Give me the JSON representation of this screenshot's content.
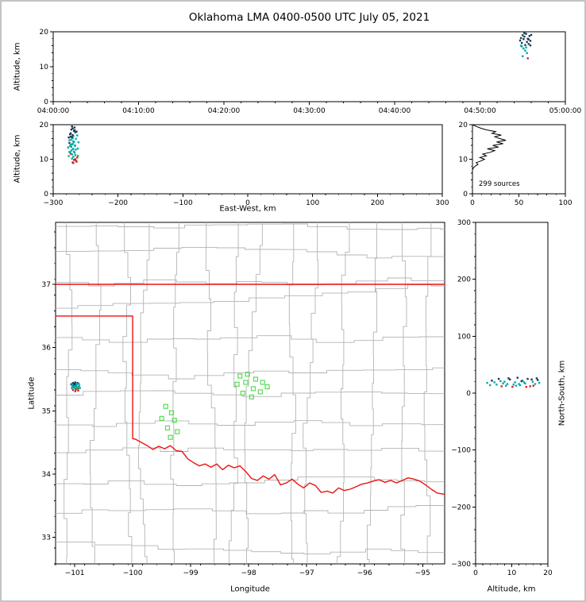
{
  "title": "Oklahoma LMA 0400-0500 UTC July 05, 2021",
  "colors": {
    "source_palette": [
      "#00a8a8",
      "#1c3a52",
      "#cc2525",
      "#2fae3c",
      "#6a3fb5"
    ],
    "station": "#55dd55",
    "state_border": "#ee1111",
    "county": "#b4b4b4",
    "histogram_line": "#000000",
    "frame": "#000000"
  },
  "chart_data": [
    {
      "id": "time_height",
      "type": "scatter",
      "xlabel": "",
      "ylabel": "Altitude, km",
      "xlim": [
        0,
        60
      ],
      "ylim": [
        0,
        20
      ],
      "xtick_values": [
        0,
        10,
        20,
        30,
        40,
        50,
        60
      ],
      "xtick_labels": [
        "04:00:00",
        "04:10:00",
        "04:20:00",
        "04:30:00",
        "04:40:00",
        "04:50:00",
        "05:00:00"
      ],
      "ytick_values": [
        0,
        10,
        20
      ],
      "points": [
        [
          54.7,
          17.5,
          1
        ],
        [
          54.8,
          18.2,
          1
        ],
        [
          54.9,
          16.8,
          1
        ],
        [
          55.0,
          19.0,
          1
        ],
        [
          55.1,
          17.9,
          1
        ],
        [
          55.2,
          18.6,
          1
        ],
        [
          55.3,
          16.2,
          1
        ],
        [
          55.4,
          19.4,
          1
        ],
        [
          55.5,
          17.1,
          1
        ],
        [
          55.6,
          18.0,
          1
        ],
        [
          55.7,
          16.5,
          1
        ],
        [
          55.8,
          18.8,
          1
        ],
        [
          55.9,
          17.4,
          1
        ],
        [
          56.0,
          19.1,
          1
        ],
        [
          54.9,
          15.8,
          0
        ],
        [
          55.1,
          15.2,
          0
        ],
        [
          55.3,
          14.6,
          0
        ],
        [
          55.5,
          13.9,
          0
        ],
        [
          55.0,
          13.0,
          0
        ],
        [
          55.6,
          12.4,
          2
        ],
        [
          55.2,
          19.6,
          1
        ],
        [
          54.8,
          16.0,
          0
        ],
        [
          55.7,
          17.8,
          1
        ],
        [
          55.4,
          15.5,
          0
        ],
        [
          55.9,
          16.1,
          1
        ]
      ]
    },
    {
      "id": "ew_height",
      "type": "scatter",
      "xlabel": "East-West, km",
      "ylabel": "Altitude, km",
      "xlim": [
        -300,
        300
      ],
      "ylim": [
        0,
        20
      ],
      "xtick_values": [
        -300,
        -200,
        -100,
        0,
        100,
        200,
        300
      ],
      "ytick_values": [
        0,
        10,
        20
      ],
      "points": [
        [
          -275,
          12.1,
          0
        ],
        [
          -271,
          14.3,
          0
        ],
        [
          -268,
          9.8,
          2
        ],
        [
          -273,
          16.5,
          1
        ],
        [
          -266,
          11.2,
          0
        ],
        [
          -270,
          18.9,
          1
        ],
        [
          -277,
          13.4,
          0
        ],
        [
          -263,
          10.5,
          2
        ],
        [
          -272,
          15.7,
          0
        ],
        [
          -269,
          8.9,
          2
        ],
        [
          -274,
          17.2,
          1
        ],
        [
          -265,
          12.8,
          0
        ],
        [
          -271,
          19.5,
          1
        ],
        [
          -267,
          14.0,
          0
        ],
        [
          -276,
          10.9,
          3
        ],
        [
          -262,
          13.1,
          0
        ],
        [
          -270,
          16.1,
          0
        ],
        [
          -273,
          11.6,
          2
        ],
        [
          -268,
          18.2,
          1
        ],
        [
          -264,
          9.3,
          2
        ],
        [
          -272,
          12.5,
          0
        ],
        [
          -269,
          15.2,
          0
        ],
        [
          -275,
          14.7,
          1
        ],
        [
          -266,
          17.8,
          1
        ],
        [
          -271,
          10.2,
          0
        ],
        [
          -263,
          16.9,
          0
        ],
        [
          -274,
          13.8,
          3
        ],
        [
          -267,
          11.9,
          0
        ],
        [
          -270,
          9.1,
          2
        ],
        [
          -272,
          18.6,
          1
        ],
        [
          -265,
          15.9,
          0
        ],
        [
          -269,
          13.0,
          0
        ],
        [
          -276,
          16.3,
          1
        ],
        [
          -268,
          12.2,
          0
        ],
        [
          -261,
          14.9,
          0
        ],
        [
          -273,
          17.5,
          1
        ],
        [
          -266,
          10.0,
          2
        ],
        [
          -270,
          14.5,
          0
        ],
        [
          -264,
          18.0,
          1
        ],
        [
          -271,
          11.4,
          0
        ],
        [
          -275,
          15.5,
          0
        ],
        [
          -267,
          19.2,
          1
        ],
        [
          -269,
          16.7,
          0
        ],
        [
          -272,
          13.6,
          0
        ],
        [
          -265,
          9.6,
          2
        ],
        [
          -270,
          17.0,
          1
        ],
        [
          -268,
          15.0,
          0
        ],
        [
          -274,
          12.0,
          0
        ],
        [
          -262,
          11.0,
          3
        ],
        [
          -266,
          13.9,
          0
        ],
        [
          -271,
          16.4,
          1
        ],
        [
          -269,
          10.7,
          0
        ],
        [
          -273,
          14.2,
          0
        ],
        [
          -267,
          18.4,
          1
        ],
        [
          -270,
          12.9,
          0
        ]
      ]
    },
    {
      "id": "alt_histogram",
      "type": "line",
      "xlabel": "",
      "ylabel": "",
      "annotation": "299 sources",
      "xlim": [
        0,
        100
      ],
      "ylim": [
        0,
        20
      ],
      "xtick_values": [
        0,
        50,
        100
      ],
      "ytick_values": [
        0,
        10,
        20
      ],
      "profile": [
        [
          0,
          0
        ],
        [
          0,
          7
        ],
        [
          1,
          7.5
        ],
        [
          3,
          8
        ],
        [
          6,
          8.5
        ],
        [
          4,
          9
        ],
        [
          9,
          9.5
        ],
        [
          13,
          10
        ],
        [
          8,
          10.5
        ],
        [
          15,
          11
        ],
        [
          11,
          11.5
        ],
        [
          19,
          12
        ],
        [
          24,
          12.5
        ],
        [
          16,
          13
        ],
        [
          28,
          13.5
        ],
        [
          22,
          14
        ],
        [
          33,
          14.5
        ],
        [
          26,
          15
        ],
        [
          36,
          15.5
        ],
        [
          29,
          16
        ],
        [
          24,
          16.5
        ],
        [
          31,
          17
        ],
        [
          21,
          17.5
        ],
        [
          25,
          18
        ],
        [
          15,
          18.5
        ],
        [
          9,
          19
        ],
        [
          4,
          19.5
        ],
        [
          0,
          20
        ]
      ]
    },
    {
      "id": "plan_view",
      "type": "scatter",
      "xlabel": "Longitude",
      "ylabel": "Latitude",
      "xlim": [
        -101.33,
        -94.62
      ],
      "ylim": [
        32.58,
        37.98
      ],
      "xtick_values": [
        -101,
        -100,
        -99,
        -98,
        -97,
        -96,
        -95
      ],
      "ytick_values": [
        33,
        34,
        35,
        36,
        37
      ],
      "points": [
        [
          -101.02,
          35.4,
          0
        ],
        [
          -100.96,
          35.35,
          0
        ],
        [
          -101.0,
          35.43,
          1
        ],
        [
          -100.93,
          35.38,
          0
        ],
        [
          -101.05,
          35.36,
          0
        ],
        [
          -100.98,
          35.41,
          1
        ],
        [
          -100.95,
          35.44,
          1
        ],
        [
          -101.03,
          35.33,
          2
        ],
        [
          -100.97,
          35.38,
          0
        ],
        [
          -101.0,
          35.36,
          0
        ],
        [
          -100.92,
          35.4,
          0
        ],
        [
          -101.06,
          35.42,
          1
        ],
        [
          -100.99,
          35.45,
          1
        ],
        [
          -100.94,
          35.32,
          2
        ],
        [
          -101.02,
          35.37,
          0
        ],
        [
          -100.96,
          35.42,
          0
        ],
        [
          -101.04,
          35.39,
          0
        ],
        [
          -100.98,
          35.34,
          2
        ],
        [
          -100.91,
          35.36,
          0
        ],
        [
          -101.01,
          35.41,
          1
        ],
        [
          -100.95,
          35.37,
          0
        ],
        [
          -100.99,
          35.31,
          2
        ],
        [
          -101.03,
          35.44,
          1
        ],
        [
          -100.97,
          35.4,
          0
        ],
        [
          -100.93,
          35.43,
          0
        ],
        [
          -101.0,
          35.39,
          0
        ],
        [
          -100.94,
          35.35,
          3
        ],
        [
          -101.05,
          35.41,
          0
        ]
      ],
      "stations": [
        [
          -99.43,
          35.07
        ],
        [
          -99.33,
          34.97
        ],
        [
          -99.5,
          34.88
        ],
        [
          -99.28,
          34.85
        ],
        [
          -99.4,
          34.73
        ],
        [
          -99.23,
          34.67
        ],
        [
          -99.35,
          34.58
        ],
        [
          -98.15,
          35.55
        ],
        [
          -98.02,
          35.58
        ],
        [
          -97.88,
          35.5
        ],
        [
          -98.2,
          35.42
        ],
        [
          -98.05,
          35.45
        ],
        [
          -97.92,
          35.35
        ],
        [
          -97.76,
          35.45
        ],
        [
          -98.1,
          35.28
        ],
        [
          -97.95,
          35.22
        ],
        [
          -97.8,
          35.3
        ],
        [
          -97.68,
          35.38
        ]
      ],
      "state_border": [
        [
          [
            -101.33,
            37.0
          ],
          [
            -94.62,
            37.0
          ]
        ],
        [
          [
            -101.33,
            36.5
          ],
          [
            -100.0,
            36.5
          ],
          [
            -100.0,
            34.56
          ],
          [
            -99.95,
            34.55
          ],
          [
            -99.85,
            34.5
          ],
          [
            -99.75,
            34.45
          ],
          [
            -99.65,
            34.39
          ],
          [
            -99.55,
            34.44
          ],
          [
            -99.45,
            34.4
          ],
          [
            -99.35,
            34.45
          ],
          [
            -99.25,
            34.37
          ],
          [
            -99.15,
            34.36
          ],
          [
            -99.05,
            34.24
          ],
          [
            -98.95,
            34.18
          ],
          [
            -98.85,
            34.13
          ],
          [
            -98.75,
            34.16
          ],
          [
            -98.65,
            34.11
          ],
          [
            -98.55,
            34.16
          ],
          [
            -98.45,
            34.07
          ],
          [
            -98.35,
            34.14
          ],
          [
            -98.25,
            34.1
          ],
          [
            -98.15,
            34.13
          ],
          [
            -98.05,
            34.04
          ],
          [
            -97.95,
            33.93
          ],
          [
            -97.85,
            33.9
          ],
          [
            -97.75,
            33.97
          ],
          [
            -97.65,
            33.92
          ],
          [
            -97.55,
            33.99
          ],
          [
            -97.45,
            33.83
          ],
          [
            -97.35,
            33.86
          ],
          [
            -97.25,
            33.92
          ],
          [
            -97.15,
            33.84
          ],
          [
            -97.05,
            33.78
          ],
          [
            -96.95,
            33.86
          ],
          [
            -96.85,
            33.82
          ],
          [
            -96.75,
            33.71
          ],
          [
            -96.65,
            33.73
          ],
          [
            -96.55,
            33.7
          ],
          [
            -96.45,
            33.78
          ],
          [
            -96.35,
            33.74
          ],
          [
            -96.25,
            33.76
          ],
          [
            -96.15,
            33.8
          ],
          [
            -96.05,
            33.84
          ],
          [
            -95.95,
            33.86
          ],
          [
            -95.85,
            33.89
          ],
          [
            -95.75,
            33.91
          ],
          [
            -95.65,
            33.87
          ],
          [
            -95.55,
            33.9
          ],
          [
            -95.45,
            33.86
          ],
          [
            -95.35,
            33.9
          ],
          [
            -95.25,
            33.94
          ],
          [
            -95.15,
            33.92
          ],
          [
            -95.05,
            33.89
          ],
          [
            -94.95,
            33.83
          ],
          [
            -94.85,
            33.76
          ],
          [
            -94.75,
            33.7
          ],
          [
            -94.62,
            33.68
          ]
        ]
      ]
    },
    {
      "id": "ns_height",
      "type": "scatter",
      "xlabel": "Altitude, km",
      "ylabel": "North-South, km",
      "xlim": [
        0,
        20
      ],
      "ylim": [
        -300,
        300
      ],
      "xtick_values": [
        0,
        10,
        20
      ],
      "ytick_values": [
        -300,
        -200,
        -100,
        0,
        100,
        200,
        300
      ],
      "points": [
        [
          3.2,
          18,
          0
        ],
        [
          4.5,
          22,
          1
        ],
        [
          5.8,
          15,
          0
        ],
        [
          6.4,
          25,
          1
        ],
        [
          7.2,
          12,
          2
        ],
        [
          8.0,
          20,
          0
        ],
        [
          8.8,
          16,
          0
        ],
        [
          9.5,
          24,
          1
        ],
        [
          10.2,
          11,
          2
        ],
        [
          10.9,
          19,
          0
        ],
        [
          11.6,
          27,
          1
        ],
        [
          12.3,
          14,
          0
        ],
        [
          13.0,
          22,
          0
        ],
        [
          13.7,
          17,
          0
        ],
        [
          14.4,
          25,
          1
        ],
        [
          15.1,
          12,
          2
        ],
        [
          15.8,
          20,
          0
        ],
        [
          16.5,
          16,
          0
        ],
        [
          17.2,
          23,
          1
        ],
        [
          4.0,
          14,
          0
        ],
        [
          6.9,
          21,
          0
        ],
        [
          9.1,
          26,
          1
        ],
        [
          11.2,
          13,
          0
        ],
        [
          13.4,
          19,
          0
        ],
        [
          15.5,
          24,
          1
        ],
        [
          7.6,
          17,
          0
        ],
        [
          10.5,
          15,
          0
        ],
        [
          12.7,
          21,
          1
        ],
        [
          16.0,
          13,
          2
        ],
        [
          17.6,
          18,
          0
        ],
        [
          5.2,
          19,
          0
        ],
        [
          8.4,
          13,
          0
        ],
        [
          14.0,
          11,
          2
        ],
        [
          16.9,
          26,
          1
        ],
        [
          12.0,
          16,
          0
        ]
      ]
    }
  ]
}
